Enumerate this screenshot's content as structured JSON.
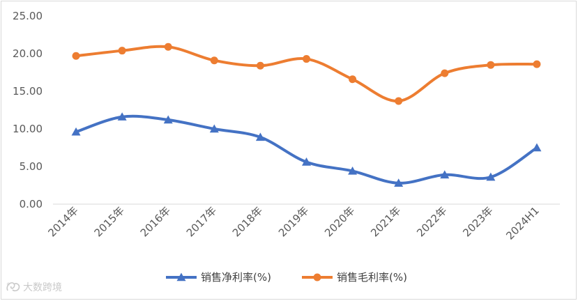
{
  "chart_data": {
    "type": "line",
    "categories": [
      "2014年",
      "2015年",
      "2016年",
      "2017年",
      "2018年",
      "2019年",
      "2020年",
      "2021年",
      "2022年",
      "2023年",
      "2024H1"
    ],
    "y_ticks": [
      "0.00",
      "5.00",
      "10.00",
      "15.00",
      "20.00",
      "25.00"
    ],
    "ylim": [
      0,
      25
    ],
    "grid": false,
    "legend_position": "bottom",
    "series": [
      {
        "name": "销售净利率(%)",
        "color": "#4472C4",
        "marker": "triangle",
        "values": [
          9.6,
          11.6,
          11.2,
          10.0,
          8.9,
          5.6,
          4.4,
          2.8,
          3.9,
          3.6,
          7.5
        ]
      },
      {
        "name": "销售毛利率(%)",
        "color": "#ED7D31",
        "marker": "circle",
        "values": [
          19.7,
          20.4,
          20.9,
          19.1,
          18.4,
          19.3,
          16.6,
          13.7,
          17.4,
          18.5,
          18.6
        ]
      }
    ]
  },
  "watermark": {
    "text": "大数跨境"
  }
}
